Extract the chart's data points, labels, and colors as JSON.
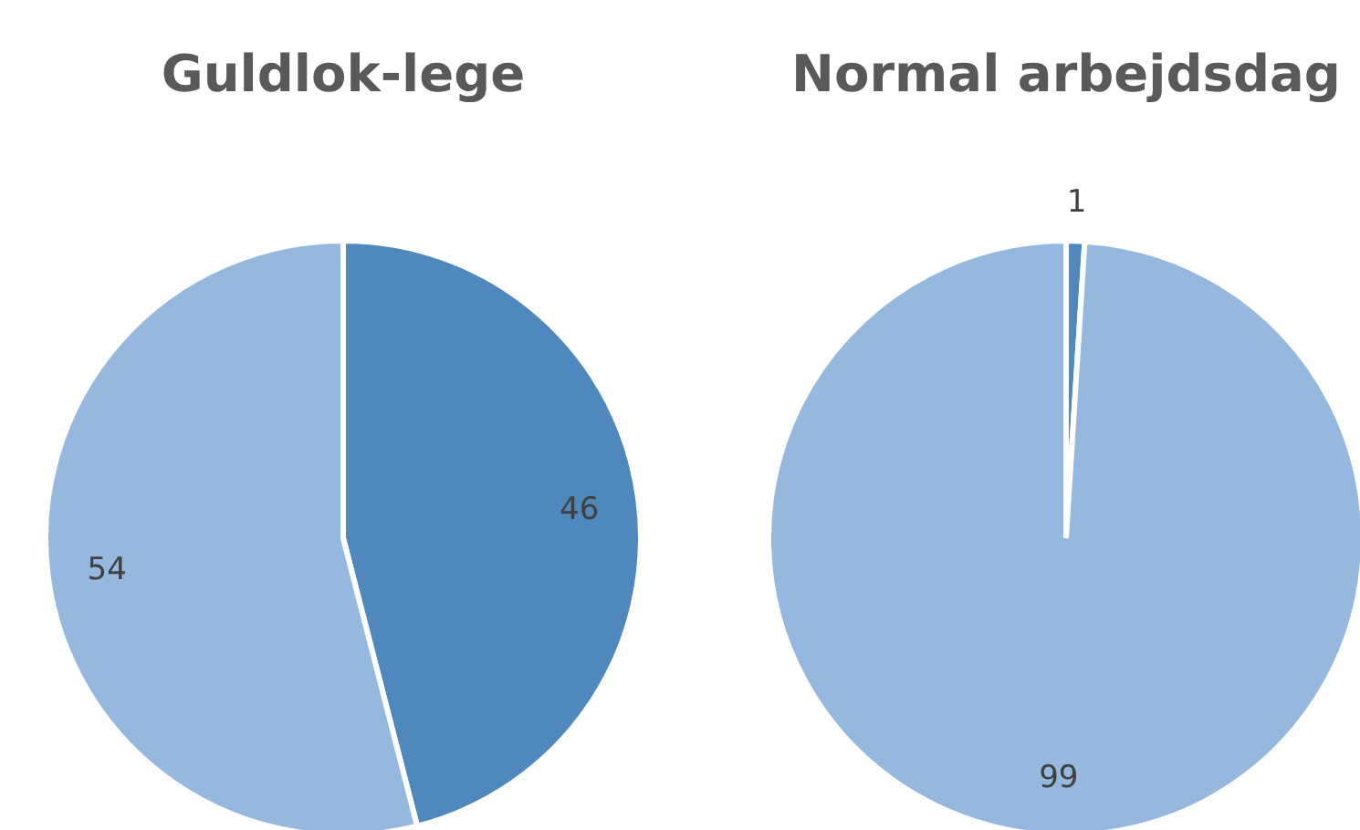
{
  "chart_data": [
    {
      "type": "pie",
      "title": "Guldlok-lege",
      "categories": [
        null,
        null
      ],
      "values": [
        46,
        54
      ],
      "colors": [
        "#4f88bd",
        "#97b8de"
      ],
      "data_labels": true
    },
    {
      "type": "pie",
      "title": "Normal arbejdsdag",
      "categories": [
        null,
        null
      ],
      "values": [
        1,
        99
      ],
      "colors": [
        "#4f88bd",
        "#97b8de"
      ],
      "data_labels": true
    }
  ]
}
